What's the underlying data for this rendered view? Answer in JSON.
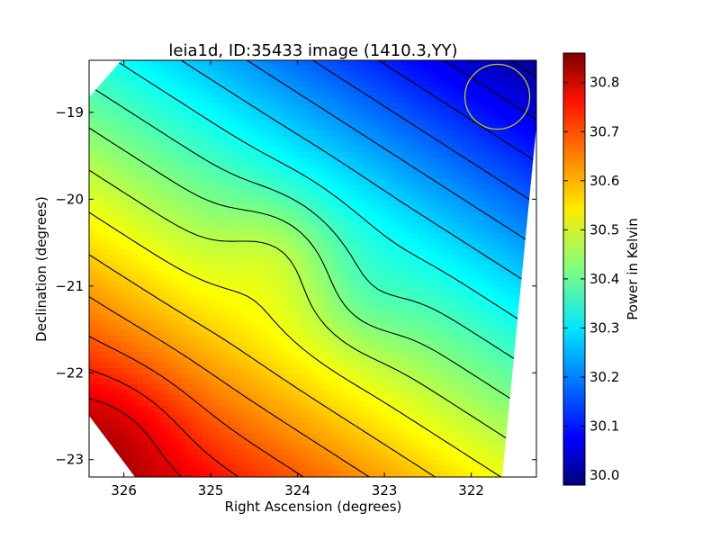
{
  "chart_data": {
    "type": "heatmap",
    "title": "leia1d, ID:35433 image (1410.3,YY)",
    "xlabel": "Right Ascension (degrees)",
    "ylabel": "Declination (degrees)",
    "colorbar_label": "Power in Kelvin",
    "xlim": [
      326.4,
      321.25
    ],
    "ylim": [
      -23.2,
      -18.4
    ],
    "x_ticks": [
      326,
      325,
      324,
      323,
      322
    ],
    "x_tick_labels": [
      "326",
      "325",
      "324",
      "323",
      "322"
    ],
    "y_ticks": [
      -19,
      -20,
      -21,
      -22,
      -23
    ],
    "y_tick_labels": [
      "−19",
      "−20",
      "−21",
      "−22",
      "−23"
    ],
    "colorbar_range": [
      29.98,
      30.86
    ],
    "colorbar_ticks": [
      30.0,
      30.1,
      30.2,
      30.3,
      30.4,
      30.5,
      30.6,
      30.7,
      30.8
    ],
    "colorbar_tick_labels": [
      "30.0",
      "30.1",
      "30.2",
      "30.3",
      "30.4",
      "30.5",
      "30.6",
      "30.7",
      "30.8"
    ],
    "colormap": "jet",
    "field_trend": "power increases toward the south-west (lower-left) and decreases toward the north-east (upper-right)",
    "beam_marker": {
      "ra": 321.7,
      "dec": -18.82,
      "color": "#c8c800"
    },
    "contour_color": "#000000",
    "grid": false,
    "legend": "none"
  }
}
